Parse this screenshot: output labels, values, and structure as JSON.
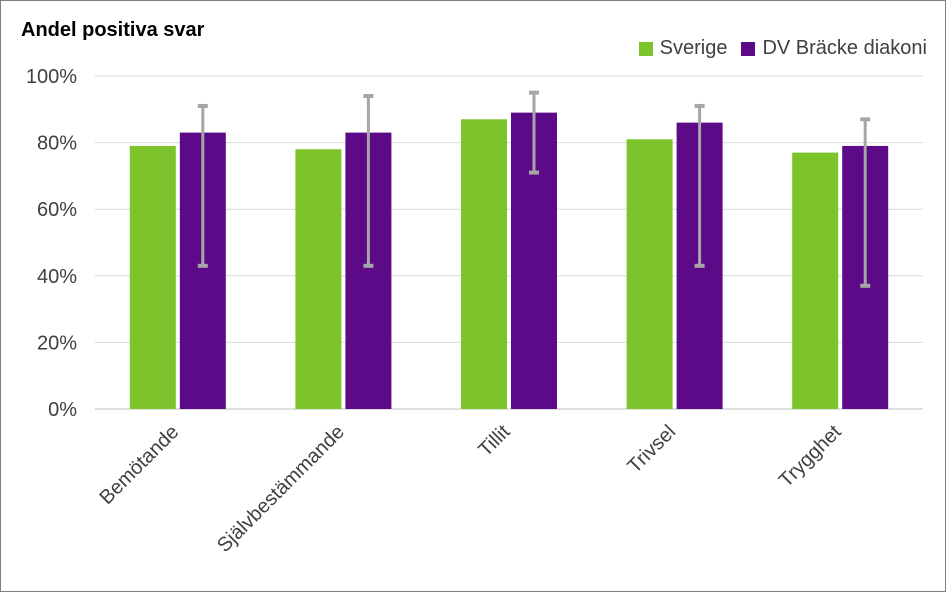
{
  "chart_data": {
    "type": "bar",
    "title": "Andel positiva svar",
    "categories": [
      "Bemötande",
      "Självbestämmande",
      "Tillit",
      "Trivsel",
      "Trygghet"
    ],
    "series": [
      {
        "name": "Sverige",
        "color": "#7dc42c",
        "values": [
          79,
          78,
          87,
          81,
          77
        ]
      },
      {
        "name": "DV Bräcke diakoni",
        "color": "#5c0a87",
        "values": [
          83,
          83,
          89,
          86,
          79
        ],
        "error_bars": [
          [
            43,
            91
          ],
          [
            43,
            94
          ],
          [
            71,
            95
          ],
          [
            43,
            91
          ],
          [
            37,
            87
          ]
        ]
      }
    ],
    "error_bar_color": "#a6a6a6",
    "ylim": [
      0,
      100
    ],
    "yticks": [
      0,
      20,
      40,
      60,
      80,
      100
    ],
    "ytick_labels": [
      "0%",
      "20%",
      "40%",
      "60%",
      "80%",
      "100%"
    ],
    "grid": true,
    "legend_position": "top-right"
  }
}
